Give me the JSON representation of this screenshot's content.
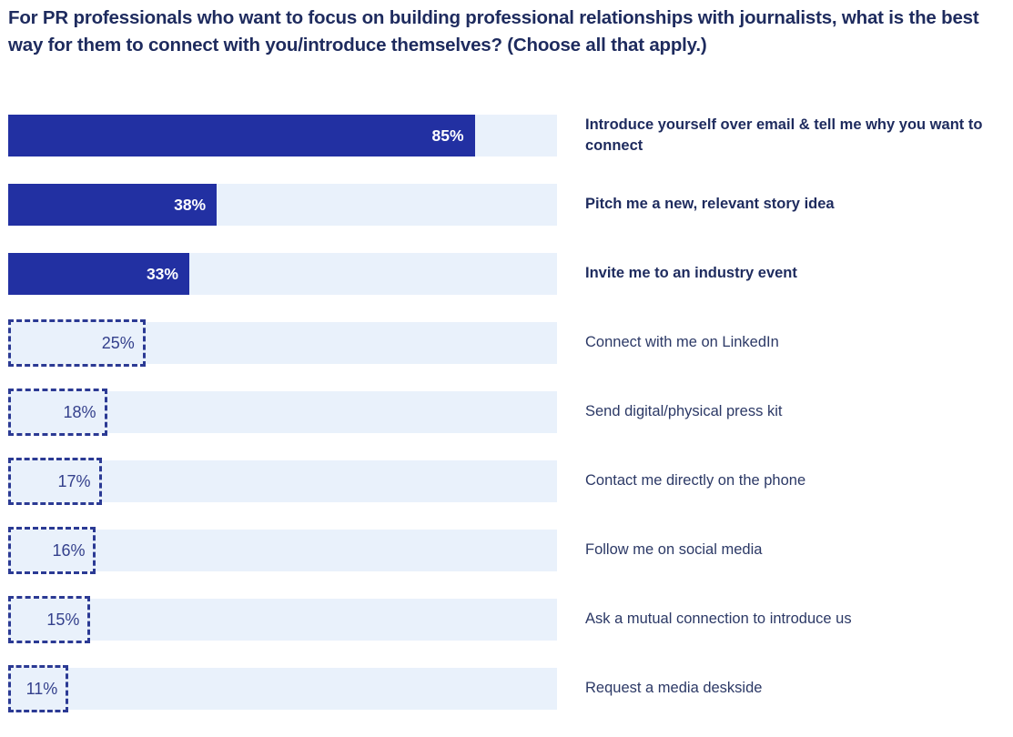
{
  "title": "For PR professionals who want to focus on building professional relationships with journalists, what is the best way for them to connect with you/introduce themselves? (Choose all that apply.)",
  "colors": {
    "title_text": "#1e2b5e",
    "bar_fill": "#2230a2",
    "bar_track": "#e9f1fb",
    "dashed_border": "#2b3a94",
    "pct_on_filled_bar": "#ffffff",
    "pct_on_dashed_bar": "#34408c",
    "label_bold": "#1e2b5e",
    "label_regular": "#2c3966"
  },
  "chart_data": {
    "type": "bar",
    "orientation": "horizontal",
    "unit": "%",
    "xlim": [
      0,
      100
    ],
    "grid": false,
    "legend": false,
    "title": "For PR professionals who want to focus on building professional relationships with journalists, what is the best way for them to connect with you/introduce themselves? (Choose all that apply.)",
    "categories": [
      "Introduce yourself over email & tell me why you want to connect",
      "Pitch me a new, relevant story idea",
      "Invite me to an industry event",
      "Connect with me on LinkedIn",
      "Send digital/physical press kit",
      "Contact me directly on the phone",
      "Follow me on social media",
      "Ask a mutual connection to introduce us",
      "Request a media deskside"
    ],
    "values": [
      85,
      38,
      33,
      25,
      18,
      17,
      16,
      15,
      11
    ],
    "value_labels": [
      "85%",
      "38%",
      "33%",
      "25%",
      "18%",
      "17%",
      "16%",
      "15%",
      "11%"
    ],
    "bar_styles": [
      "filled",
      "filled",
      "filled",
      "dashed",
      "dashed",
      "dashed",
      "dashed",
      "dashed",
      "dashed"
    ],
    "category_label_weights": [
      "bold",
      "bold",
      "bold",
      "regular",
      "regular",
      "regular",
      "regular",
      "regular",
      "regular"
    ]
  }
}
